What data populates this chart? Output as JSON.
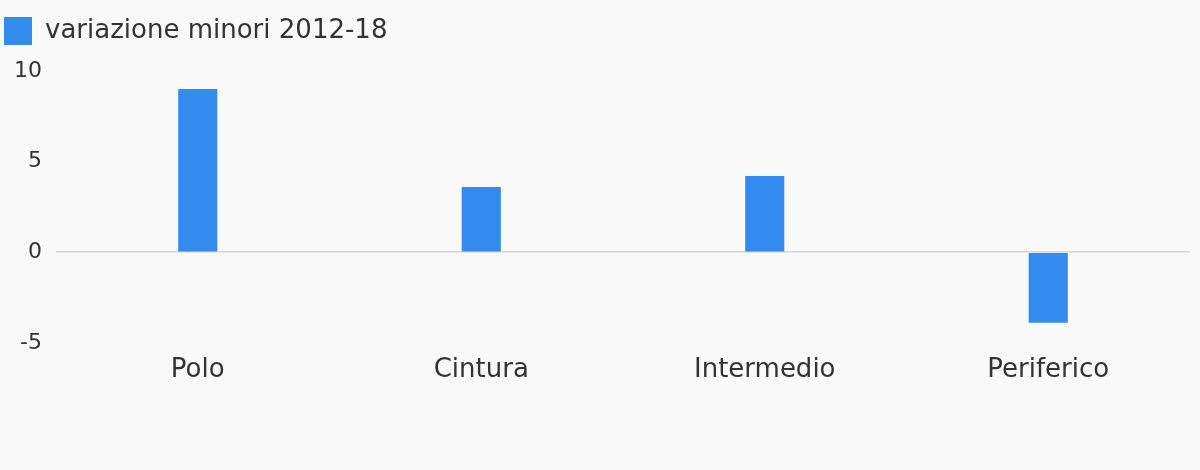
{
  "chart_data": {
    "type": "bar",
    "categories": [
      "Polo",
      "Cintura",
      "Intermedio",
      "Periferico"
    ],
    "series": [
      {
        "name": "variazione minori 2012-18",
        "color": "#338ced",
        "values": [
          9.0,
          3.6,
          4.2,
          -3.9
        ]
      }
    ],
    "ylim": [
      -5,
      10
    ],
    "yticks": [
      -5,
      0,
      5,
      10
    ],
    "legend": "top left"
  }
}
